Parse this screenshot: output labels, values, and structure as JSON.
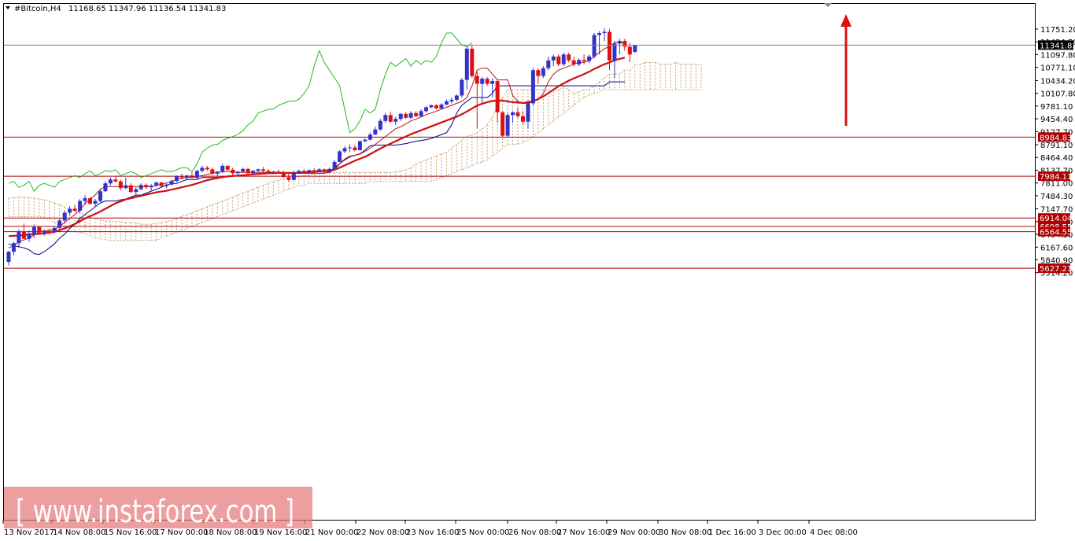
{
  "header": {
    "symbol": "#Bitcoin,H4",
    "ohlc": "11168.65 11347.96 11136.54 11341.83"
  },
  "watermark": "[ www.instaforex.com ]",
  "current_price": "11341.83",
  "colors": {
    "bull": "#3333cc",
    "bear": "#dd1111",
    "ma_thick": "#cc1111",
    "tenkan": "#bb1111",
    "kijun": "#000080",
    "chikou": "#22bb22",
    "cloud": "#c8a070",
    "level_line": "#b00000",
    "arrow": "#dd1111"
  },
  "chart_data": {
    "type": "candlestick",
    "y_ticks": [
      "11751.20",
      "11424.50",
      "11097.80",
      "10771.10",
      "10434.20",
      "10107.80",
      "9781.10",
      "9454.40",
      "9127.70",
      "8791.10",
      "8464.40",
      "8137.70",
      "7811.00",
      "7484.30",
      "7147.70",
      "6821.00",
      "6494.30",
      "6167.60",
      "5840.90",
      "5514.20"
    ],
    "x_labels": [
      "13 Nov 2017",
      "14 Nov 08:00",
      "15 Nov 16:00",
      "17 Nov 00:00",
      "18 Nov 08:00",
      "19 Nov 16:00",
      "21 Nov 00:00",
      "22 Nov 08:00",
      "23 Nov 16:00",
      "25 Nov 00:00",
      "26 Nov 08:00",
      "27 Nov 16:00",
      "29 Nov 00:00",
      "30 Nov 08:00",
      "1 Dec 16:00",
      "3 Dec 00:00",
      "4 Dec 08:00"
    ],
    "horizontal_levels": [
      "8984.83",
      "7984.11",
      "6914.04",
      "6698.55",
      "6564.55",
      "5627.21"
    ],
    "ylim": [
      5500,
      11950
    ],
    "candles": [
      [
        5790,
        6070,
        5700,
        6050
      ],
      [
        6050,
        6300,
        5960,
        6270
      ],
      [
        6270,
        6620,
        6150,
        6560
      ],
      [
        6560,
        6770,
        6420,
        6380
      ],
      [
        6380,
        6600,
        6300,
        6520
      ],
      [
        6520,
        6750,
        6400,
        6680
      ],
      [
        6680,
        6700,
        6480,
        6540
      ],
      [
        6540,
        6620,
        6460,
        6580
      ],
      [
        6580,
        6640,
        6500,
        6560
      ],
      [
        6560,
        6700,
        6520,
        6660
      ],
      [
        6660,
        6900,
        6620,
        6850
      ],
      [
        6850,
        7100,
        6800,
        7050
      ],
      [
        7050,
        7220,
        6980,
        7150
      ],
      [
        7150,
        7250,
        7080,
        7100
      ],
      [
        7100,
        7400,
        7050,
        7350
      ],
      [
        7350,
        7500,
        7250,
        7420
      ],
      [
        7420,
        7450,
        7250,
        7280
      ],
      [
        7280,
        7400,
        7200,
        7350
      ],
      [
        7350,
        7650,
        7320,
        7600
      ],
      [
        7600,
        7850,
        7580,
        7800
      ],
      [
        7800,
        7950,
        7750,
        7900
      ],
      [
        7900,
        7980,
        7820,
        7850
      ],
      [
        7850,
        7900,
        7620,
        7680
      ],
      [
        7680,
        7950,
        7650,
        7750
      ],
      [
        7750,
        7800,
        7550,
        7580
      ],
      [
        7580,
        7700,
        7500,
        7650
      ],
      [
        7650,
        7800,
        7620,
        7760
      ],
      [
        7760,
        7800,
        7650,
        7700
      ],
      [
        7700,
        7780,
        7620,
        7740
      ],
      [
        7740,
        7850,
        7700,
        7820
      ],
      [
        7820,
        7850,
        7700,
        7730
      ],
      [
        7730,
        7800,
        7680,
        7770
      ],
      [
        7770,
        7900,
        7740,
        7860
      ],
      [
        7860,
        8000,
        7840,
        7980
      ],
      [
        7980,
        8050,
        7900,
        7950
      ],
      [
        7950,
        8020,
        7880,
        8000
      ],
      [
        8000,
        8080,
        7940,
        7940
      ],
      [
        7940,
        8150,
        7920,
        8120
      ],
      [
        8120,
        8250,
        8080,
        8200
      ],
      [
        8200,
        8250,
        8120,
        8160
      ],
      [
        8160,
        8200,
        8020,
        8050
      ],
      [
        8050,
        8120,
        7900,
        8100
      ],
      [
        8100,
        8300,
        8060,
        8250
      ],
      [
        8250,
        8260,
        8120,
        8150
      ],
      [
        8150,
        8200,
        8000,
        8060
      ],
      [
        8060,
        8120,
        8000,
        8100
      ],
      [
        8100,
        8200,
        8080,
        8170
      ],
      [
        8170,
        8200,
        8040,
        8060
      ],
      [
        8060,
        8150,
        8040,
        8120
      ],
      [
        8120,
        8180,
        8080,
        8160
      ],
      [
        8160,
        8220,
        8090,
        8120
      ],
      [
        8120,
        8170,
        8060,
        8080
      ],
      [
        8080,
        8120,
        8040,
        8100
      ],
      [
        8100,
        8150,
        8060,
        8080
      ],
      [
        8080,
        8130,
        7950,
        7960
      ],
      [
        7960,
        8050,
        7850,
        7890
      ],
      [
        7890,
        8120,
        7880,
        8060
      ],
      [
        8060,
        8150,
        8040,
        8120
      ],
      [
        8120,
        8160,
        8060,
        8100
      ],
      [
        8100,
        8150,
        8060,
        8140
      ],
      [
        8140,
        8190,
        8100,
        8120
      ],
      [
        8120,
        8190,
        8090,
        8160
      ],
      [
        8160,
        8180,
        8080,
        8090
      ],
      [
        8090,
        8200,
        8080,
        8170
      ],
      [
        8170,
        8400,
        8160,
        8350
      ],
      [
        8350,
        8650,
        8340,
        8620
      ],
      [
        8620,
        8750,
        8580,
        8700
      ],
      [
        8700,
        8800,
        8600,
        8720
      ],
      [
        8720,
        8780,
        8620,
        8650
      ],
      [
        8650,
        8900,
        8640,
        8880
      ],
      [
        8880,
        8950,
        8860,
        8920
      ],
      [
        8920,
        9100,
        8900,
        9050
      ],
      [
        9050,
        9250,
        9040,
        9180
      ],
      [
        9180,
        9450,
        9150,
        9400
      ],
      [
        9400,
        9600,
        9350,
        9550
      ],
      [
        9550,
        9640,
        9350,
        9380
      ],
      [
        9380,
        9500,
        9300,
        9450
      ],
      [
        9450,
        9600,
        9400,
        9580
      ],
      [
        9580,
        9620,
        9450,
        9480
      ],
      [
        9480,
        9650,
        9450,
        9600
      ],
      [
        9600,
        9650,
        9500,
        9520
      ],
      [
        9520,
        9700,
        9500,
        9650
      ],
      [
        9650,
        9780,
        9620,
        9750
      ],
      [
        9750,
        9820,
        9720,
        9800
      ],
      [
        9800,
        9830,
        9700,
        9720
      ],
      [
        9720,
        9850,
        9700,
        9820
      ],
      [
        9820,
        9950,
        9800,
        9900
      ],
      [
        9900,
        10000,
        9850,
        9940
      ],
      [
        9940,
        10080,
        9900,
        10050
      ],
      [
        10050,
        10500,
        10000,
        10450
      ],
      [
        10450,
        11300,
        10200,
        11250
      ],
      [
        11250,
        11350,
        10500,
        10550
      ],
      [
        10550,
        10650,
        9200,
        10350
      ],
      [
        10350,
        10520,
        9850,
        10480
      ],
      [
        10480,
        10520,
        10300,
        10350
      ],
      [
        10350,
        10500,
        10000,
        10420
      ],
      [
        10420,
        10450,
        9350,
        9620
      ],
      [
        9620,
        9650,
        8980,
        9020
      ],
      [
        9020,
        9600,
        8990,
        9550
      ],
      [
        9550,
        9650,
        9350,
        9620
      ],
      [
        9620,
        9740,
        9480,
        9520
      ],
      [
        9520,
        9650,
        9300,
        9380
      ],
      [
        9380,
        9900,
        9200,
        9850
      ],
      [
        9850,
        10750,
        9800,
        10700
      ],
      [
        10700,
        10750,
        10350,
        10550
      ],
      [
        10550,
        10800,
        10500,
        10750
      ],
      [
        10750,
        11050,
        10700,
        10950
      ],
      [
        10950,
        11100,
        10800,
        11050
      ],
      [
        11050,
        11100,
        10800,
        10850
      ],
      [
        10850,
        11150,
        10800,
        11100
      ],
      [
        11100,
        11150,
        10900,
        10950
      ],
      [
        10950,
        11050,
        10800,
        10850
      ],
      [
        10850,
        11000,
        10800,
        10960
      ],
      [
        10960,
        11100,
        10850,
        10930
      ],
      [
        10930,
        11100,
        10880,
        11050
      ],
      [
        11050,
        11650,
        11000,
        11600
      ],
      [
        11600,
        11700,
        11100,
        11650
      ],
      [
        11650,
        11780,
        11450,
        11680
      ],
      [
        11680,
        11750,
        10700,
        10950
      ],
      [
        10950,
        11450,
        10500,
        11380
      ],
      [
        11380,
        11500,
        11100,
        11450
      ],
      [
        11450,
        11500,
        11200,
        11300
      ],
      [
        11300,
        11400,
        10900,
        11100
      ],
      [
        11168.65,
        11347.96,
        11136.54,
        11341.83
      ]
    ],
    "moving_average": [
      6450,
      6460,
      6460,
      6480,
      6490,
      6500,
      6510,
      6520,
      6540,
      6560,
      6600,
      6650,
      6700,
      6760,
      6830,
      6900,
      6960,
      7020,
      7080,
      7150,
      7220,
      7290,
      7340,
      7390,
      7420,
      7450,
      7480,
      7510,
      7540,
      7570,
      7590,
      7610,
      7640,
      7670,
      7700,
      7730,
      7760,
      7800,
      7840,
      7880,
      7910,
      7940,
      7960,
      7980,
      7990,
      8000,
      8010,
      8020,
      8030,
      8040,
      8050,
      8060,
      8060,
      8070,
      8070,
      8070,
      8070,
      8070,
      8080,
      8090,
      8100,
      8110,
      8120,
      8130,
      8150,
      8200,
      8260,
      8320,
      8380,
      8430,
      8480,
      8550,
      8620,
      8690,
      8760,
      8820,
      8880,
      8940,
      9000,
      9060,
      9110,
      9160,
      9210,
      9260,
      9310,
      9360,
      9410,
      9460,
      9510,
      9570,
      9640,
      9720,
      9790,
      9840,
      9880,
      9910,
      9920,
      9920,
      9900,
      9880,
      9870,
      9860,
      9860,
      9900,
      9960,
      10030,
      10110,
      10200,
      10290,
      10360,
      10430,
      10490,
      10540,
      10600,
      10660,
      10730,
      10790,
      10850,
      10900,
      10950,
      10990,
      11020
    ],
    "tenkan_sen": [
      6150,
      6200,
      6300,
      6350,
      6400,
      6480,
      6560,
      6580,
      6600,
      6610,
      6700,
      6800,
      6900,
      7000,
      7120,
      7280,
      7400,
      7500,
      7650,
      7720,
      7720,
      7720,
      7720,
      7720,
      7720,
      7720,
      7720,
      7720,
      7720,
      7750,
      7780,
      7810,
      7850,
      7900,
      7930,
      7950,
      7960,
      7980,
      8000,
      8030,
      8060,
      8080,
      8100,
      8100,
      8100,
      8080,
      8080,
      8080,
      8080,
      8080,
      8080,
      8080,
      8080,
      8080,
      8070,
      8060,
      8060,
      8060,
      8060,
      8060,
      8060,
      8060,
      8060,
      8080,
      8150,
      8300,
      8420,
      8500,
      8520,
      8550,
      8620,
      8700,
      8800,
      8900,
      9000,
      9100,
      9200,
      9250,
      9320,
      9400,
      9450,
      9500,
      9560,
      9600,
      9650,
      9700,
      9750,
      9800,
      9850,
      9900,
      10000,
      10300,
      10700,
      10750,
      10750,
      10600,
      10450,
      10450,
      10450,
      10050,
      9900,
      9850,
      9900,
      9900,
      9950,
      10100,
      10400,
      10600,
      10700,
      10750,
      10800,
      10850,
      10900,
      10900,
      10950,
      11050,
      11150,
      11250,
      11300,
      11400,
      11400,
      11400
    ],
    "kijun_sen": [
      6250,
      6200,
      6180,
      6150,
      6100,
      6000,
      5980,
      6050,
      6150,
      6250,
      6400,
      6500,
      6650,
      6750,
      6900,
      7000,
      7100,
      7200,
      7300,
      7350,
      7350,
      7350,
      7380,
      7400,
      7450,
      7500,
      7500,
      7550,
      7600,
      7650,
      7700,
      7750,
      7800,
      7800,
      7850,
      7900,
      7900,
      7900,
      7950,
      7950,
      7950,
      7950,
      7950,
      7980,
      8000,
      8000,
      8000,
      8020,
      8040,
      8050,
      8060,
      8060,
      8060,
      8060,
      8060,
      8060,
      8060,
      8060,
      8060,
      8060,
      8060,
      8060,
      8060,
      8100,
      8200,
      8300,
      8400,
      8480,
      8520,
      8560,
      8650,
      8760,
      8780,
      8780,
      8780,
      8780,
      8780,
      8800,
      8820,
      8850,
      8880,
      8900,
      8920,
      8950,
      9000,
      9050,
      9100,
      9300,
      9600,
      9800,
      9900,
      10000,
      10000,
      10000,
      10000,
      10100,
      10300,
      10300,
      10300,
      10300,
      10300,
      10300,
      10300,
      10300,
      10300,
      10300,
      10300,
      10300,
      10300,
      10300,
      10300,
      10300,
      10300,
      10300,
      10300,
      10300,
      10300,
      10300,
      10400,
      10400,
      10400,
      10400
    ],
    "chikou_span": [
      7800,
      7850,
      7700,
      7750,
      7850,
      7600,
      7750,
      7800,
      7750,
      7700,
      7850,
      7900,
      7950,
      8000,
      7950,
      8050,
      8120,
      8000,
      8050,
      8130,
      8100,
      8150,
      8000,
      8050,
      8100,
      8050,
      7950,
      8000,
      8050,
      8100,
      8150,
      8100,
      8100,
      8150,
      8200,
      8200,
      8100,
      8300,
      8600,
      8700,
      8780,
      8800,
      8900,
      8950,
      9000,
      9050,
      9150,
      9300,
      9400,
      9600,
      9650,
      9700,
      9700,
      9800,
      9850,
      9900,
      9900,
      9950,
      10100,
      10300,
      10800,
      11200,
      10900,
      10700,
      10500,
      10300,
      9700,
      9100,
      9200,
      9400,
      9700,
      9600,
      9700,
      10200,
      10600,
      10900,
      10800,
      10900,
      11000,
      10800,
      10950,
      10850,
      10950,
      10900,
      11050,
      11400,
      11650,
      11650,
      11500,
      11350,
      11300,
      11400
    ],
    "senkou_a": [
      7420,
      7440,
      7450,
      7450,
      7440,
      7420,
      7400,
      7380,
      7350,
      7300,
      7250,
      7200,
      7150,
      7100,
      7050,
      7000,
      6950,
      6900,
      6870,
      6840,
      6830,
      6820,
      6820,
      6800,
      6800,
      6780,
      6760,
      6750,
      6760,
      6780,
      6800,
      6820,
      6850,
      6900,
      6950,
      7000,
      7050,
      7100,
      7150,
      7200,
      7250,
      7300,
      7350,
      7400,
      7450,
      7500,
      7550,
      7600,
      7650,
      7700,
      7750,
      7800,
      7850,
      7880,
      7910,
      7940,
      7960,
      7980,
      8000,
      8020,
      8040,
      8060,
      8080,
      8080,
      8080,
      8080,
      8080,
      8080,
      8080,
      8080,
      8080,
      8080,
      8080,
      8080,
      8080,
      8080,
      8100,
      8120,
      8150,
      8200,
      8300,
      8350,
      8400,
      8450,
      8500,
      8550,
      8600,
      8700,
      8800,
      8900,
      9000,
      9050,
      9100,
      9200,
      9300,
      9500,
      9800,
      10000,
      10200,
      10200,
      10200,
      10200,
      10200,
      10200,
      10200,
      10200,
      10200,
      10150,
      10200,
      10250,
      10200,
      10100,
      10150,
      10200,
      10200,
      10300,
      10400,
      10500,
      10600,
      10600,
      10600,
      10700,
      10700,
      10850,
      10850,
      10900,
      10900,
      10900,
      10850,
      10850,
      10850,
      10900,
      10850,
      10850,
      10850,
      10850,
      10850
    ],
    "senkou_b": [
      6950,
      6950,
      6950,
      6950,
      6950,
      6950,
      6950,
      6920,
      6880,
      6800,
      6700,
      6620,
      6580,
      6560,
      6550,
      6520,
      6460,
      6400,
      6380,
      6360,
      6340,
      6340,
      6340,
      6340,
      6340,
      6340,
      6340,
      6340,
      6340,
      6340,
      6400,
      6450,
      6500,
      6550,
      6600,
      6650,
      6700,
      6750,
      6800,
      6850,
      6900,
      6950,
      7000,
      7050,
      7100,
      7150,
      7200,
      7250,
      7300,
      7350,
      7400,
      7450,
      7500,
      7550,
      7600,
      7650,
      7700,
      7750,
      7750,
      7800,
      7800,
      7800,
      7800,
      7800,
      7800,
      7800,
      7800,
      7800,
      7800,
      7800,
      7800,
      7850,
      7850,
      7850,
      7850,
      7850,
      7850,
      7850,
      7850,
      7850,
      7850,
      7850,
      7850,
      7850,
      7900,
      7950,
      8000,
      8050,
      8100,
      8150,
      8200,
      8250,
      8300,
      8350,
      8400,
      8500,
      8600,
      8700,
      8800,
      8800,
      8800,
      8850,
      8900,
      9000,
      9100,
      9200,
      9300,
      9400,
      9500,
      9600,
      9700,
      9800,
      9900,
      10000,
      10050,
      10100,
      10150,
      10200,
      10200,
      10200,
      10200,
      10200,
      10200,
      10200,
      10200,
      10200,
      10200,
      10200,
      10200,
      10200,
      10200,
      10200,
      10200,
      10200,
      10200,
      10200,
      10200
    ]
  }
}
